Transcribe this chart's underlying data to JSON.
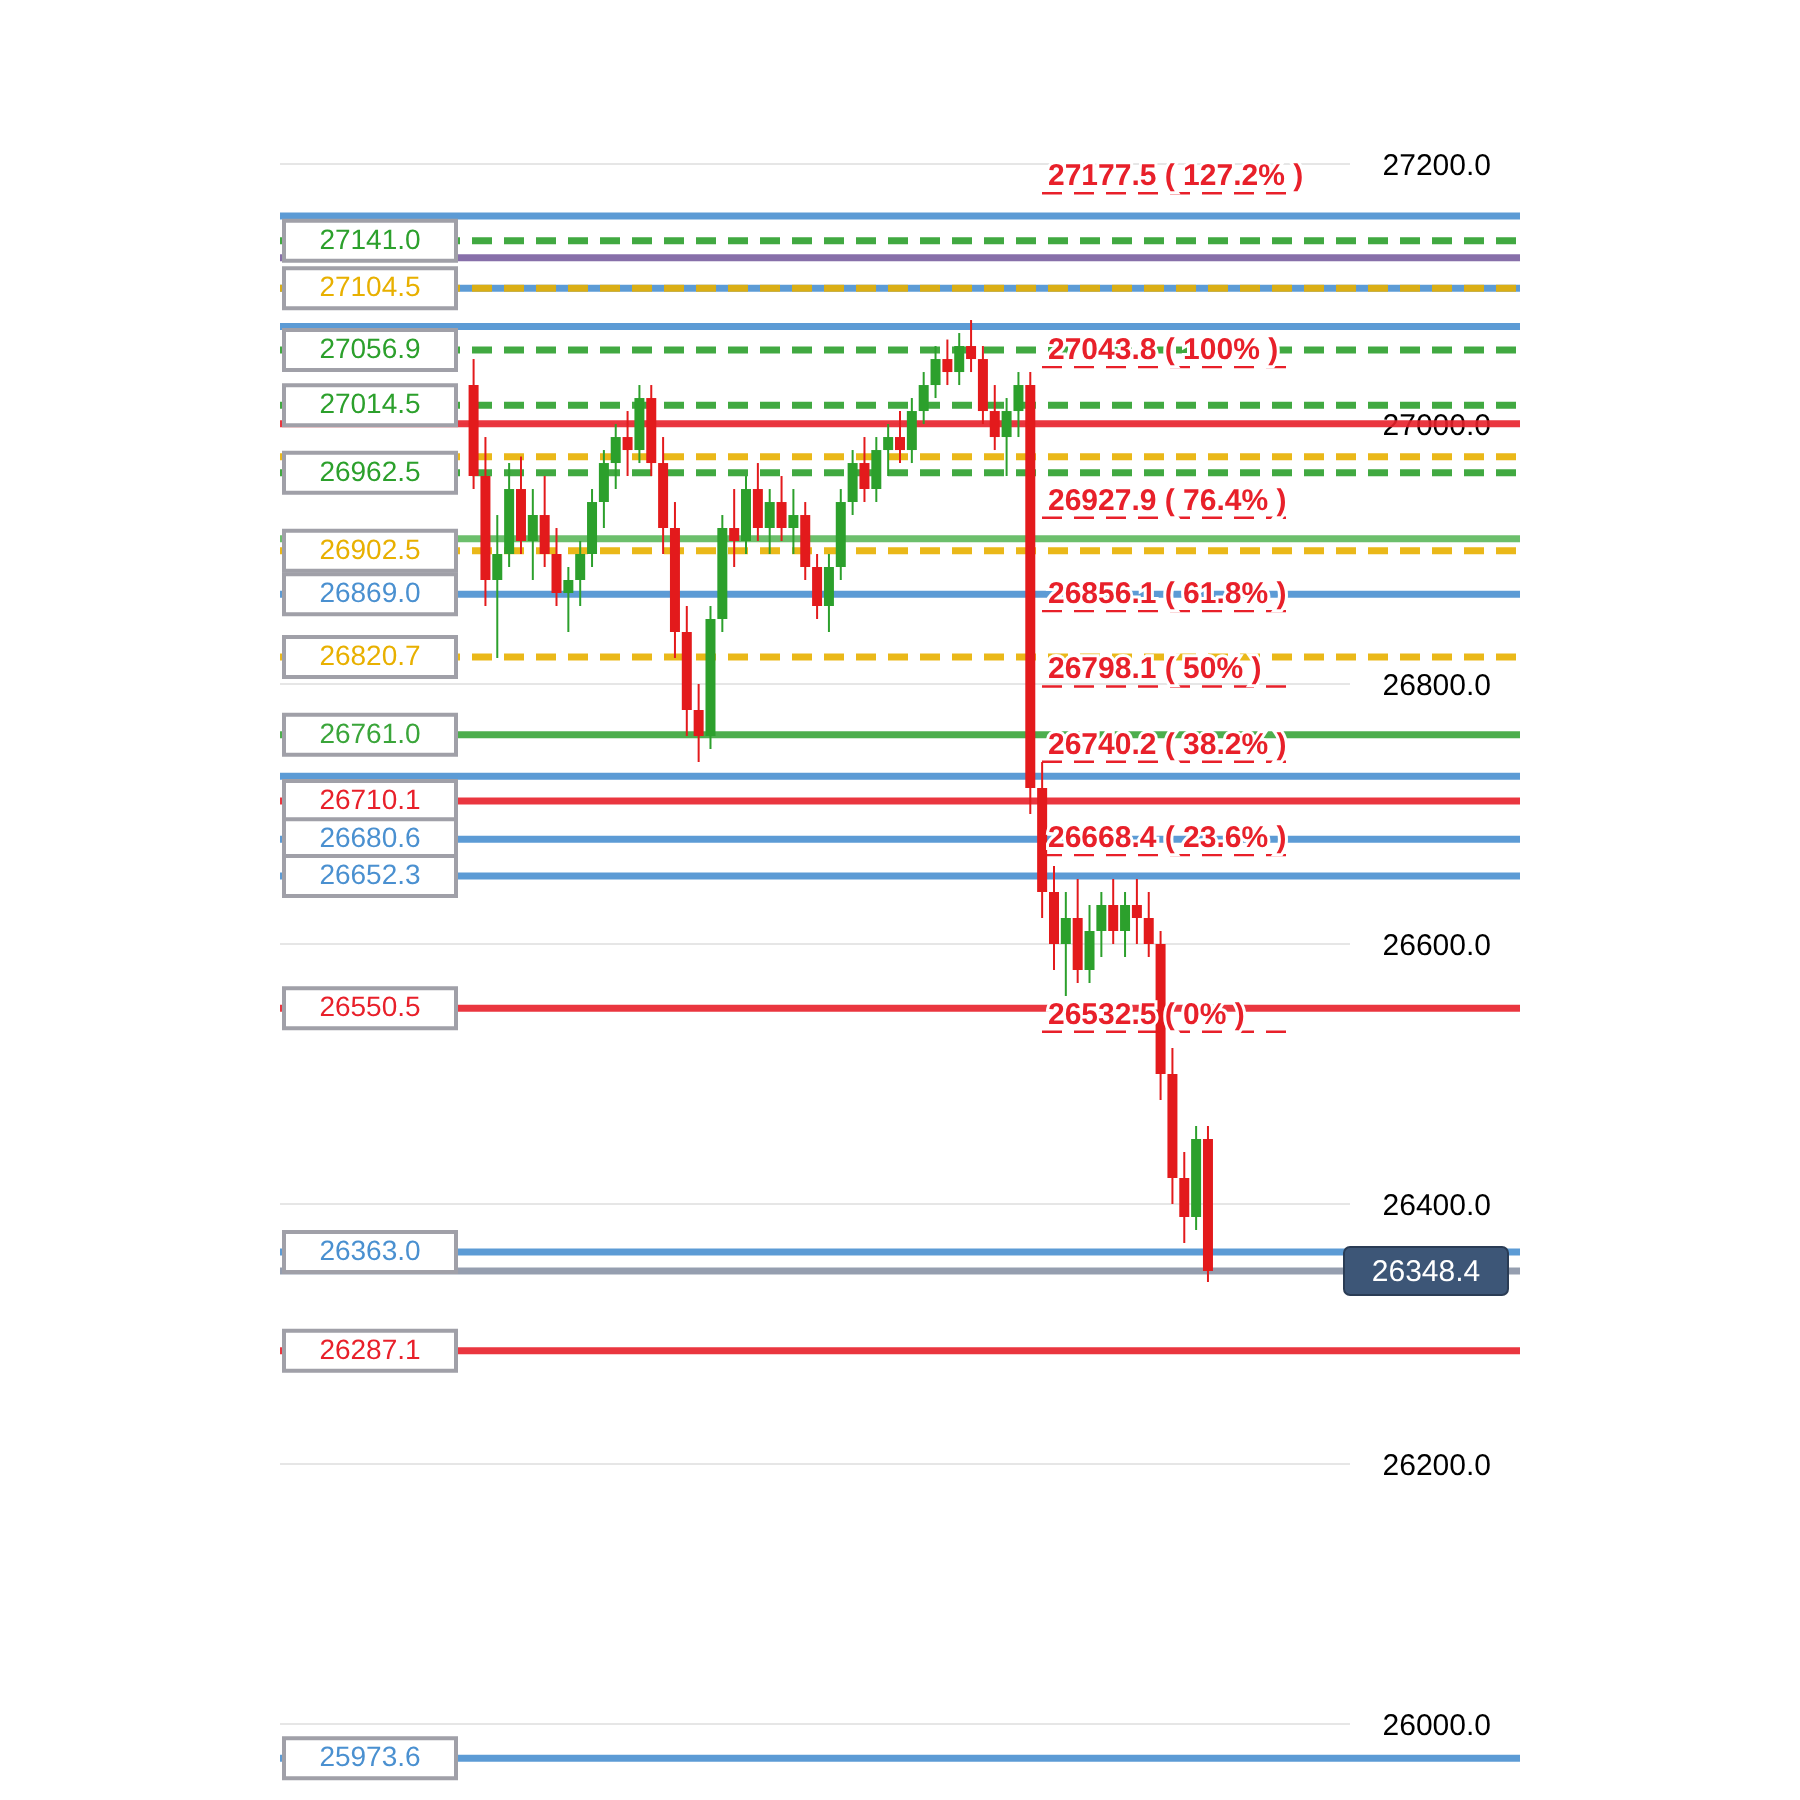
{
  "chart_data": {
    "type": "candlestick",
    "categories": [
      null,
      null,
      null,
      null,
      null,
      null,
      null,
      null,
      null,
      null,
      null,
      null,
      null,
      null,
      null,
      null,
      null,
      null,
      null,
      null,
      null,
      null,
      null,
      null,
      null,
      null,
      null,
      null,
      null,
      null,
      null,
      null,
      null,
      null,
      null,
      null,
      null,
      null,
      null,
      null,
      null,
      null,
      null,
      null,
      null,
      null,
      null,
      null,
      null,
      null,
      null,
      null,
      null,
      null,
      null,
      null,
      null,
      null,
      null,
      null,
      null,
      null,
      null,
      null,
      null,
      null,
      null,
      null,
      null,
      null,
      null,
      null,
      null,
      null,
      null,
      null,
      null,
      null,
      null,
      null,
      null,
      null,
      null,
      null,
      null,
      null,
      null,
      null,
      null,
      null,
      null,
      null,
      null,
      null,
      null,
      null,
      null,
      null,
      null,
      null,
      null,
      null,
      null
    ],
    "ohlc": [
      null,
      null,
      null,
      null,
      null,
      null,
      null,
      null,
      null,
      null,
      null,
      null,
      null,
      null,
      null,
      [
        27030,
        27050,
        26950,
        26960
      ],
      [
        26960,
        26990,
        26860,
        26880
      ],
      [
        26880,
        26930,
        26820,
        26900
      ],
      [
        26900,
        26970,
        26890,
        26950
      ],
      [
        26950,
        26975,
        26900,
        26910
      ],
      [
        26910,
        26950,
        26880,
        26930
      ],
      [
        26930,
        26960,
        26890,
        26900
      ],
      [
        26900,
        26920,
        26860,
        26870
      ],
      [
        26870,
        26890,
        26840,
        26880
      ],
      [
        26880,
        26910,
        26860,
        26900
      ],
      [
        26900,
        26950,
        26890,
        26940
      ],
      [
        26940,
        26980,
        26920,
        26970
      ],
      [
        26970,
        27000,
        26950,
        26990
      ],
      [
        26990,
        27010,
        26960,
        26980
      ],
      [
        26980,
        27030,
        26970,
        27020
      ],
      [
        27020,
        27030,
        26960,
        26970
      ],
      [
        26970,
        26990,
        26900,
        26920
      ],
      [
        26920,
        26940,
        26820,
        26840
      ],
      [
        26840,
        26860,
        26760,
        26780
      ],
      [
        26780,
        26800,
        26740,
        26760
      ],
      [
        26760,
        26860,
        26750,
        26850
      ],
      [
        26850,
        26930,
        26840,
        26920
      ],
      [
        26920,
        26950,
        26890,
        26910
      ],
      [
        26910,
        26960,
        26900,
        26950
      ],
      [
        26950,
        26970,
        26910,
        26920
      ],
      [
        26920,
        26950,
        26900,
        26940
      ],
      [
        26940,
        26960,
        26910,
        26920
      ],
      [
        26920,
        26950,
        26900,
        26930
      ],
      [
        26930,
        26940,
        26880,
        26890
      ],
      [
        26890,
        26900,
        26850,
        26860
      ],
      [
        26860,
        26900,
        26840,
        26890
      ],
      [
        26890,
        26950,
        26880,
        26940
      ],
      [
        26940,
        26980,
        26930,
        26970
      ],
      [
        26970,
        26990,
        26940,
        26950
      ],
      [
        26950,
        26990,
        26940,
        26980
      ],
      [
        26980,
        27000,
        26960,
        26990
      ],
      [
        26990,
        27010,
        26970,
        26980
      ],
      [
        26980,
        27020,
        26970,
        27010
      ],
      [
        27010,
        27040,
        27000,
        27030
      ],
      [
        27030,
        27060,
        27020,
        27050
      ],
      [
        27050,
        27065,
        27030,
        27040
      ],
      [
        27040,
        27070,
        27030,
        27060
      ],
      [
        27060,
        27080,
        27040,
        27050
      ],
      [
        27050,
        27060,
        27000,
        27010
      ],
      [
        27010,
        27030,
        26980,
        26990
      ],
      [
        26990,
        27020,
        26960,
        27010
      ],
      [
        27010,
        27040,
        26990,
        27030
      ],
      [
        27030,
        27040,
        26700,
        26720
      ],
      [
        26720,
        26740,
        26620,
        26640
      ],
      [
        26640,
        26660,
        26580,
        26600
      ],
      [
        26600,
        26640,
        26560,
        26620
      ],
      [
        26620,
        26650,
        26570,
        26580
      ],
      [
        26580,
        26630,
        26570,
        26610
      ],
      [
        26610,
        26640,
        26590,
        26630
      ],
      [
        26630,
        26650,
        26600,
        26610
      ],
      [
        26610,
        26640,
        26590,
        26630
      ],
      [
        26630,
        26650,
        26600,
        26620
      ],
      [
        26620,
        26640,
        26590,
        26600
      ],
      [
        26600,
        26610,
        26480,
        26500
      ],
      [
        26500,
        26520,
        26400,
        26420
      ],
      [
        26420,
        26440,
        26370,
        26390
      ],
      [
        26390,
        26460,
        26380,
        26450
      ],
      [
        26450,
        26460,
        26340,
        26348.4
      ],
      null,
      null,
      null,
      null,
      null,
      null,
      null,
      null,
      null,
      null,
      null,
      null,
      null,
      null,
      null,
      null,
      null,
      null,
      null,
      null,
      null,
      null,
      null,
      null,
      null
    ],
    "ref_lines": [
      {
        "axis": "y",
        "value": 27160,
        "label": null,
        "color": "#4a90d0"
      },
      {
        "axis": "y",
        "value": 27141.0,
        "label": "27141.0",
        "color": "#2ca02c",
        "line_style": "dashed"
      },
      {
        "axis": "y",
        "value": 27127.9,
        "label": null,
        "color": "#7a5fa0"
      },
      {
        "axis": "y",
        "value": 27104.5,
        "label": null,
        "color": "#4a90d0"
      },
      {
        "axis": "y",
        "value": 27104.5,
        "label": "27104.5",
        "color": "#e8b000",
        "line_style": "dashed"
      },
      {
        "axis": "y",
        "value": 27075,
        "label": null,
        "color": "#4a90d0"
      },
      {
        "axis": "y",
        "value": 27056.9,
        "label": "27056.9",
        "color": "#2ca02c",
        "line_style": "dashed"
      },
      {
        "axis": "y",
        "value": 27014.5,
        "label": "27014.5",
        "color": "#2ca02c",
        "line_style": "dashed"
      },
      {
        "axis": "y",
        "value": 27000.3,
        "label": null,
        "color": "#e8202a"
      },
      {
        "axis": "y",
        "value": 26974.8,
        "label": null,
        "color": "#e8b000",
        "line_style": "dashed"
      },
      {
        "axis": "y",
        "value": 26962.5,
        "label": "26962.5",
        "color": "#2ca02c",
        "line_style": "dashed"
      },
      {
        "axis": "y",
        "value": 26911.8,
        "label": null,
        "color": "#5cb85c"
      },
      {
        "axis": "y",
        "value": 26902.5,
        "label": "26902.5",
        "color": "#e8b000",
        "line_style": "dashed"
      },
      {
        "axis": "y",
        "value": 26869.0,
        "label": "26869.0",
        "color": "#4a90d0"
      },
      {
        "axis": "y",
        "value": 26820.7,
        "label": "26820.7",
        "color": "#e8b000",
        "line_style": "dashed"
      },
      {
        "axis": "y",
        "value": 26761.0,
        "label": "26761.0",
        "color": "#3aa53a"
      },
      {
        "axis": "y",
        "value": 26729.1,
        "label": null,
        "color": "#4a90d0"
      },
      {
        "axis": "y",
        "value": 26710.1,
        "label": "26710.1",
        "color": "#e8202a"
      },
      {
        "axis": "y",
        "value": 26680.6,
        "label": "26680.6",
        "color": "#4a90d0"
      },
      {
        "axis": "y",
        "value": 26652.3,
        "label": "26652.3",
        "color": "#4a90d0"
      },
      {
        "axis": "y",
        "value": 26550.5,
        "label": "26550.5",
        "color": "#e8202a"
      },
      {
        "axis": "y",
        "value": 26363.0,
        "label": "26363.0",
        "color": "#4a90d0"
      },
      {
        "axis": "y",
        "value": 26348.4,
        "label": null,
        "color": "#8a94a6"
      },
      {
        "axis": "y",
        "value": 26287.1,
        "label": "26287.1",
        "color": "#e8202a"
      },
      {
        "axis": "y",
        "value": 25973.6,
        "label": "25973.6",
        "color": "#4a90d0"
      },
      {
        "axis": "y",
        "value": 27177.5,
        "label": null,
        "color": "#e8202a",
        "line_style": "dashed"
      },
      {
        "axis": "y",
        "value": 27043.8,
        "label": null,
        "color": "#e8202a",
        "line_style": "dashed"
      },
      {
        "axis": "y",
        "value": 26927.9,
        "label": null,
        "color": "#e8202a",
        "line_style": "dashed"
      },
      {
        "axis": "y",
        "value": 26856.1,
        "label": null,
        "color": "#e8202a",
        "line_style": "dashed"
      },
      {
        "axis": "y",
        "value": 26798.1,
        "label": null,
        "color": "#e8202a",
        "line_style": "dashed"
      },
      {
        "axis": "y",
        "value": 26740.2,
        "label": null,
        "color": "#e8202a",
        "line_style": "dashed"
      },
      {
        "axis": "y",
        "value": 26668.4,
        "label": null,
        "color": "#e8202a",
        "line_style": "dashed"
      },
      {
        "axis": "y",
        "value": 26532.5,
        "label": null,
        "color": "#e8202a",
        "line_style": "dashed"
      }
    ],
    "annotations": [
      {
        "text": "27177.5 ( 127.2% )",
        "y": 27177.5
      },
      {
        "text": "27043.8 ( 100% )",
        "y": 27043.8
      },
      {
        "text": "26927.9 ( 76.4% )",
        "y": 26927.9
      },
      {
        "text": "26856.1 ( 61.8% )",
        "y": 26856.1
      },
      {
        "text": "26798.1 ( 50% )",
        "y": 26798.1
      },
      {
        "text": "26740.2 ( 38.2% )",
        "y": 26740.2
      },
      {
        "text": "26668.4 ( 23.6% )",
        "y": 26668.4
      },
      {
        "text": "26532.5 ( 0% )",
        "y": 26532.5
      },
      {
        "text": "26348.4",
        "y": 26348.4
      }
    ],
    "ylim": [
      25941.5,
      27326.2
    ],
    "yticks": [
      {
        "value": 26000,
        "label": "26000.0"
      },
      {
        "value": 26200,
        "label": "26200.0"
      },
      {
        "value": 26400,
        "label": "26400.0"
      },
      {
        "value": 26600,
        "label": "26600.0"
      },
      {
        "value": 26800,
        "label": "26800.0"
      },
      {
        "value": 27000,
        "label": "27000.0"
      },
      {
        "value": 27200,
        "label": "27200.0"
      }
    ],
    "grid": "y",
    "tick_labels": "y"
  }
}
